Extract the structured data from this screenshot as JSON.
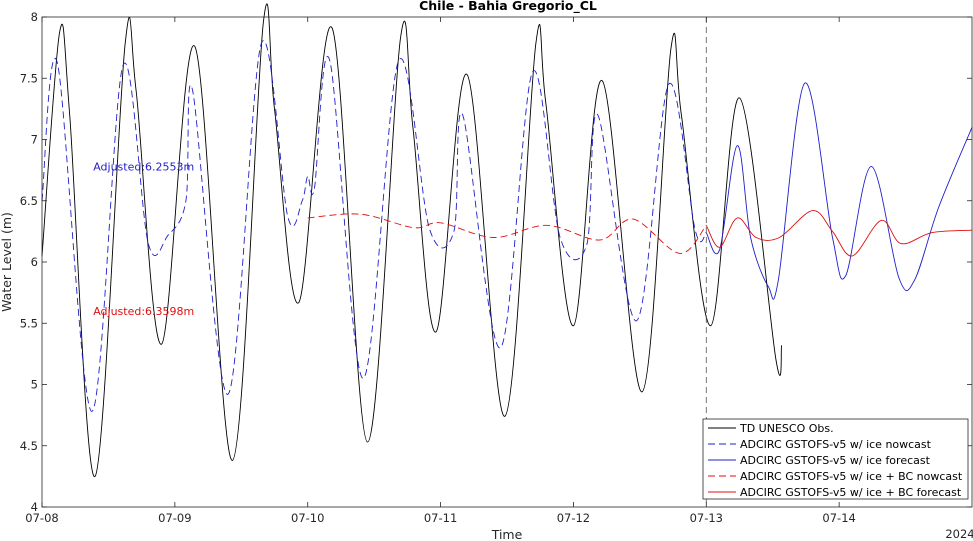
{
  "chart_data": {
    "type": "line",
    "title": "Chile - Bahia Gregorio_CL",
    "xlabel": "Time",
    "ylabel": "Water Level (m)",
    "year_label": "2024",
    "xlim": [
      "2024-07-08T00:00",
      "2024-07-15T00:00"
    ],
    "ylim": [
      4,
      8
    ],
    "x_ticks": [
      "07-08",
      "07-09",
      "07-10",
      "07-11",
      "07-12",
      "07-13",
      "07-14"
    ],
    "y_ticks": [
      "4",
      "4.5",
      "5",
      "5.5",
      "6",
      "6.5",
      "7",
      "7.5",
      "8"
    ],
    "grid": false,
    "legend_position": "bottom-right",
    "nowcast_forecast_split": "2024-07-13T00:00",
    "annotations": [
      {
        "text": "Adjusted:6.2553m",
        "x": "2024-07-08T09:15",
        "y": 6.78,
        "color": "#1f1fcc"
      },
      {
        "text": "Adjusted:6.3598m",
        "x": "2024-07-08T09:15",
        "y": 5.6,
        "color": "#e01010"
      }
    ],
    "series": [
      {
        "name": "TD UNESCO Obs.",
        "color": "#000000",
        "dash": "solid",
        "points": [
          [
            "2024-07-08T00:00",
            6.05
          ],
          [
            "2024-07-08T03:12",
            7.88
          ],
          [
            "2024-07-08T05:00",
            7.2
          ],
          [
            "2024-07-08T09:36",
            4.25
          ],
          [
            "2024-07-08T15:00",
            7.77
          ],
          [
            "2024-07-08T17:00",
            7.4
          ],
          [
            "2024-07-08T21:36",
            5.33
          ],
          [
            "2024-07-09T03:36",
            7.76
          ],
          [
            "2024-07-09T10:24",
            4.38
          ],
          [
            "2024-07-09T16:00",
            7.96
          ],
          [
            "2024-07-09T18:00",
            7.25
          ],
          [
            "2024-07-09T22:24",
            5.67
          ],
          [
            "2024-07-10T04:24",
            7.91
          ],
          [
            "2024-07-10T10:48",
            4.53
          ],
          [
            "2024-07-10T16:48",
            7.84
          ],
          [
            "2024-07-10T19:00",
            7.1
          ],
          [
            "2024-07-10T23:12",
            5.43
          ],
          [
            "2024-07-11T04:48",
            7.53
          ],
          [
            "2024-07-11T11:36",
            4.74
          ],
          [
            "2024-07-11T17:12",
            7.78
          ],
          [
            "2024-07-11T19:00",
            7.3
          ],
          [
            "2024-07-12T00:00",
            5.48
          ],
          [
            "2024-07-12T05:12",
            7.48
          ],
          [
            "2024-07-12T12:24",
            4.94
          ],
          [
            "2024-07-12T17:36",
            7.74
          ],
          [
            "2024-07-12T19:30",
            7.2
          ],
          [
            "2024-07-13T00:48",
            5.48
          ],
          [
            "2024-07-13T06:00",
            7.34
          ],
          [
            "2024-07-13T12:36",
            5.2
          ],
          [
            "2024-07-13T13:36",
            5.32
          ]
        ]
      },
      {
        "name": "ADCIRC GSTOFS-v5 w/ ice nowcast",
        "color": "#1f1fcc",
        "dash": "dashed",
        "points": [
          [
            "2024-07-08T00:00",
            6.5
          ],
          [
            "2024-07-08T02:48",
            7.62
          ],
          [
            "2024-07-08T09:00",
            4.78
          ],
          [
            "2024-07-08T14:36",
            7.6
          ],
          [
            "2024-07-08T19:12",
            6.15
          ],
          [
            "2024-07-08T22:48",
            6.22
          ],
          [
            "2024-07-09T02:00",
            6.5
          ],
          [
            "2024-07-09T03:12",
            7.4
          ],
          [
            "2024-07-09T09:36",
            4.92
          ],
          [
            "2024-07-09T15:36",
            7.78
          ],
          [
            "2024-07-09T20:24",
            6.37
          ],
          [
            "2024-07-09T23:00",
            6.5
          ],
          [
            "2024-07-10T00:00",
            6.7
          ],
          [
            "2024-07-10T01:12",
            6.6
          ],
          [
            "2024-07-10T04:00",
            7.64
          ],
          [
            "2024-07-10T10:00",
            5.05
          ],
          [
            "2024-07-10T16:24",
            7.64
          ],
          [
            "2024-07-10T22:00",
            6.27
          ],
          [
            "2024-07-11T02:24",
            6.25
          ],
          [
            "2024-07-11T04:00",
            7.2
          ],
          [
            "2024-07-11T10:48",
            5.3
          ],
          [
            "2024-07-11T16:36",
            7.55
          ],
          [
            "2024-07-11T21:36",
            6.2
          ],
          [
            "2024-07-12T02:24",
            6.14
          ],
          [
            "2024-07-12T04:24",
            7.2
          ],
          [
            "2024-07-12T11:24",
            5.52
          ],
          [
            "2024-07-12T17:12",
            7.45
          ],
          [
            "2024-07-12T22:00",
            6.26
          ],
          [
            "2024-07-13T00:00",
            6.24
          ]
        ]
      },
      {
        "name": "ADCIRC GSTOFS-v5 w/ ice forecast",
        "color": "#1f1fcc",
        "dash": "solid",
        "points": [
          [
            "2024-07-13T00:00",
            6.24
          ],
          [
            "2024-07-13T02:24",
            6.1
          ],
          [
            "2024-07-13T05:36",
            6.95
          ],
          [
            "2024-07-13T08:00",
            6.2
          ],
          [
            "2024-07-13T11:12",
            5.8
          ],
          [
            "2024-07-13T13:00",
            5.85
          ],
          [
            "2024-07-13T17:48",
            7.46
          ],
          [
            "2024-07-13T22:48",
            6.2
          ],
          [
            "2024-07-14T01:12",
            5.89
          ],
          [
            "2024-07-14T05:48",
            6.78
          ],
          [
            "2024-07-14T10:48",
            5.87
          ],
          [
            "2024-07-14T13:36",
            5.85
          ],
          [
            "2024-07-14T18:00",
            6.45
          ],
          [
            "2024-07-15T00:00",
            7.1
          ]
        ]
      },
      {
        "name": "ADCIRC GSTOFS-v5 w/ ice + BC nowcast",
        "color": "#e01010",
        "dash": "dashed",
        "points": [
          [
            "2024-07-10T00:00",
            6.36
          ],
          [
            "2024-07-10T09:36",
            6.39
          ],
          [
            "2024-07-10T19:12",
            6.28
          ],
          [
            "2024-07-11T00:00",
            6.32
          ],
          [
            "2024-07-11T09:36",
            6.2
          ],
          [
            "2024-07-11T19:12",
            6.3
          ],
          [
            "2024-07-12T04:48",
            6.18
          ],
          [
            "2024-07-12T10:48",
            6.35
          ],
          [
            "2024-07-12T19:12",
            6.07
          ],
          [
            "2024-07-13T00:00",
            6.3
          ]
        ]
      },
      {
        "name": "ADCIRC GSTOFS-v5 w/ ice + BC forecast",
        "color": "#e01010",
        "dash": "solid",
        "points": [
          [
            "2024-07-13T00:00",
            6.3
          ],
          [
            "2024-07-13T02:24",
            6.12
          ],
          [
            "2024-07-13T05:36",
            6.36
          ],
          [
            "2024-07-13T09:00",
            6.2
          ],
          [
            "2024-07-13T13:12",
            6.2
          ],
          [
            "2024-07-13T19:12",
            6.42
          ],
          [
            "2024-07-13T22:48",
            6.25
          ],
          [
            "2024-07-14T02:24",
            6.05
          ],
          [
            "2024-07-14T07:36",
            6.34
          ],
          [
            "2024-07-14T11:12",
            6.15
          ],
          [
            "2024-07-14T16:48",
            6.24
          ],
          [
            "2024-07-15T00:00",
            6.26
          ]
        ]
      }
    ]
  }
}
